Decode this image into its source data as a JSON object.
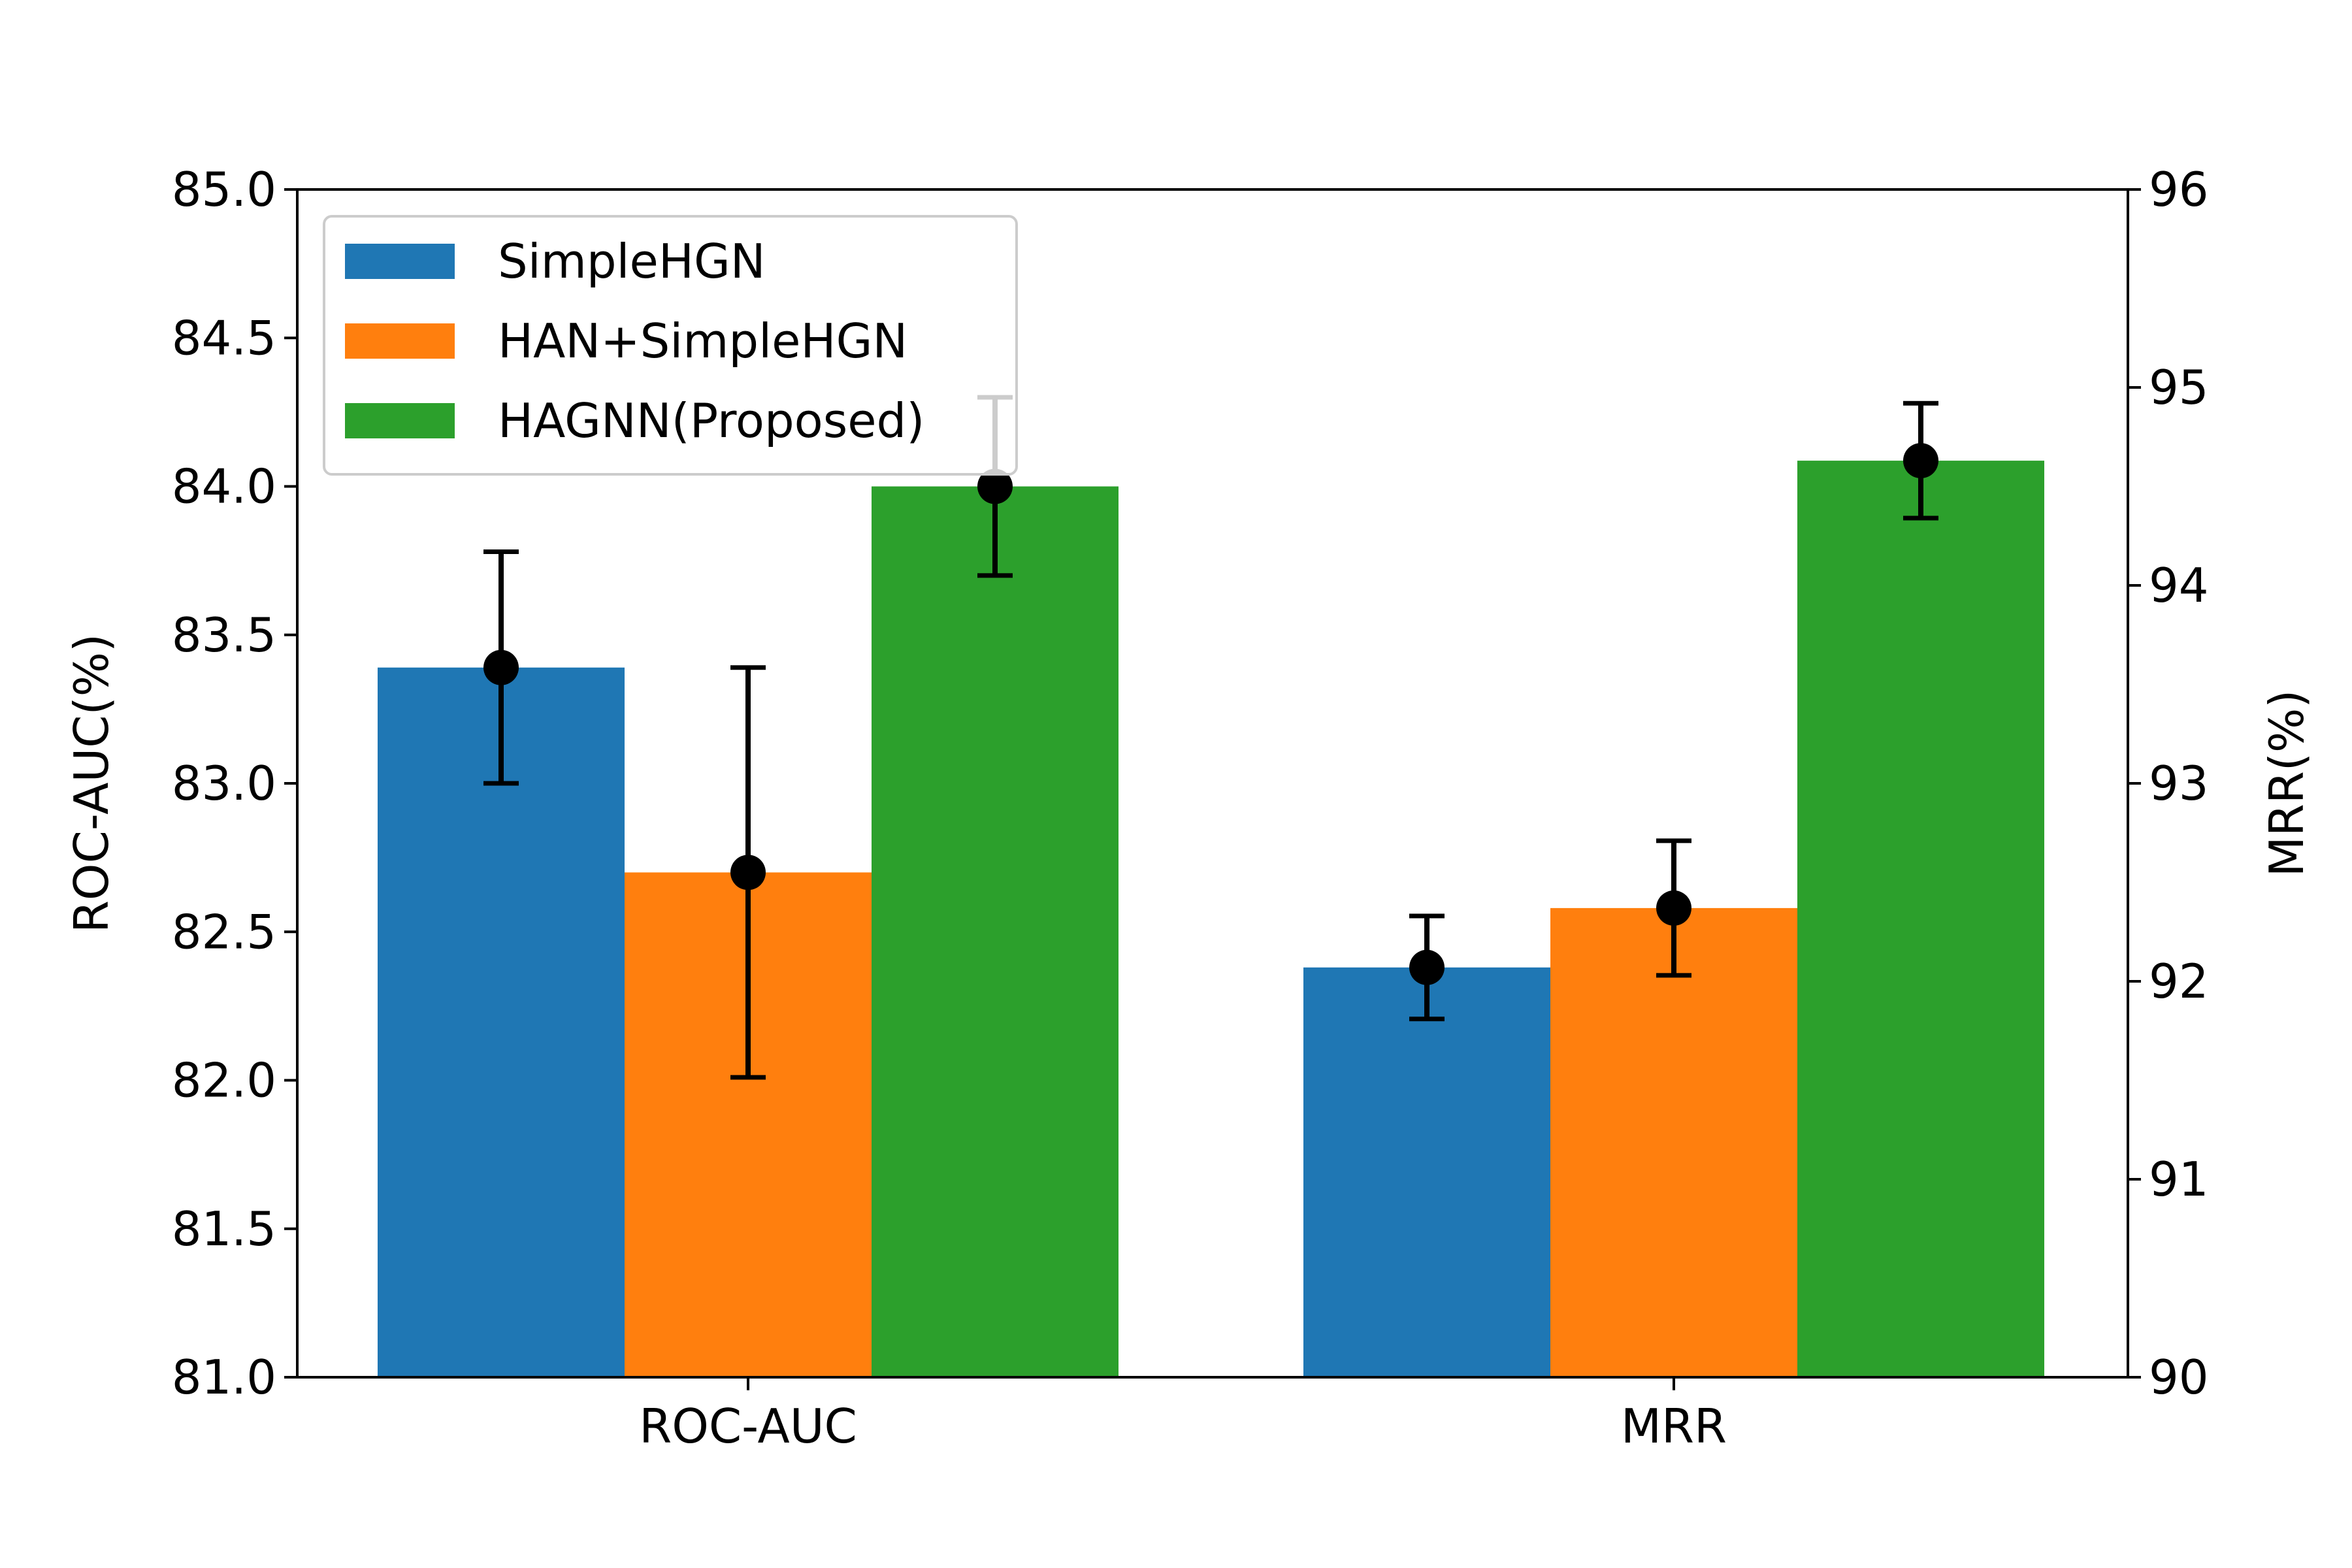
{
  "chart_data": {
    "type": "bar",
    "categories": [
      "ROC-AUC",
      "MRR"
    ],
    "left_axis": {
      "label": "ROC-AUC(%)",
      "ylim": [
        81.0,
        85.0
      ],
      "ticks": [
        "81.0",
        "81.5",
        "82.0",
        "82.5",
        "83.0",
        "83.5",
        "84.0",
        "84.5",
        "85.0"
      ]
    },
    "right_axis": {
      "label": "MRR(%)",
      "ylim": [
        90,
        96
      ],
      "ticks": [
        "90",
        "91",
        "92",
        "93",
        "94",
        "95",
        "96"
      ]
    },
    "series": [
      {
        "name": "SimpleHGN",
        "color": "#1f77b4",
        "values": [
          83.39,
          92.07
        ],
        "errors": [
          0.39,
          0.26
        ],
        "error_centers": [
          83.39,
          92.07
        ]
      },
      {
        "name": "HAN+SimpleHGN",
        "color": "#ff7f0e",
        "values": [
          82.7,
          92.37
        ],
        "errors": [
          0.69,
          0.34
        ],
        "error_centers": [
          82.7,
          92.37
        ]
      },
      {
        "name": "HAGNN(Proposed)",
        "color": "#2ca02c",
        "values": [
          84.0,
          94.63
        ],
        "errors": [
          0.3,
          0.29
        ],
        "error_centers": [
          84.0,
          94.63
        ]
      }
    ],
    "category_axis": [
      "left",
      "right"
    ],
    "legend_position": "upper left",
    "grid": false
  }
}
